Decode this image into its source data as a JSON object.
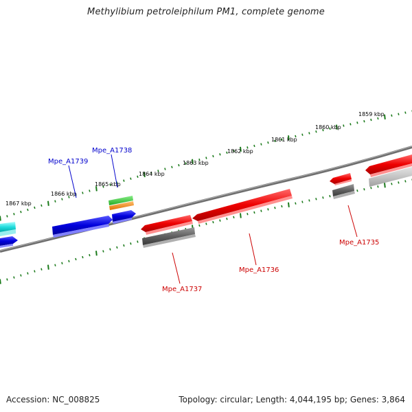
{
  "title": "Methylibium petroleiphilum PM1, complete genome",
  "footer": {
    "accession": "Accession: NC_008825",
    "summary": "Topology: circular; Length: 4,044,195 bp; Genes: 3,864"
  },
  "scale_labels": [
    "1867 kbp",
    "1866 kbp",
    "1865 kbp",
    "1864 kbp",
    "1863 kbp",
    "1862 kbp",
    "1861 kbp",
    "1860 kbp",
    "1859 kbp"
  ],
  "gene_labels": {
    "a1739": "Mpe_A1739",
    "a1738": "Mpe_A1738",
    "a1737": "Mpe_A1737",
    "a1736": "Mpe_A1736",
    "a1735": "Mpe_A1735"
  },
  "colors": {
    "plus_strand_label": "#0000cc",
    "minus_strand_label": "#cc0000",
    "tick": "#1a7a1a",
    "backbone": "#777777"
  }
}
